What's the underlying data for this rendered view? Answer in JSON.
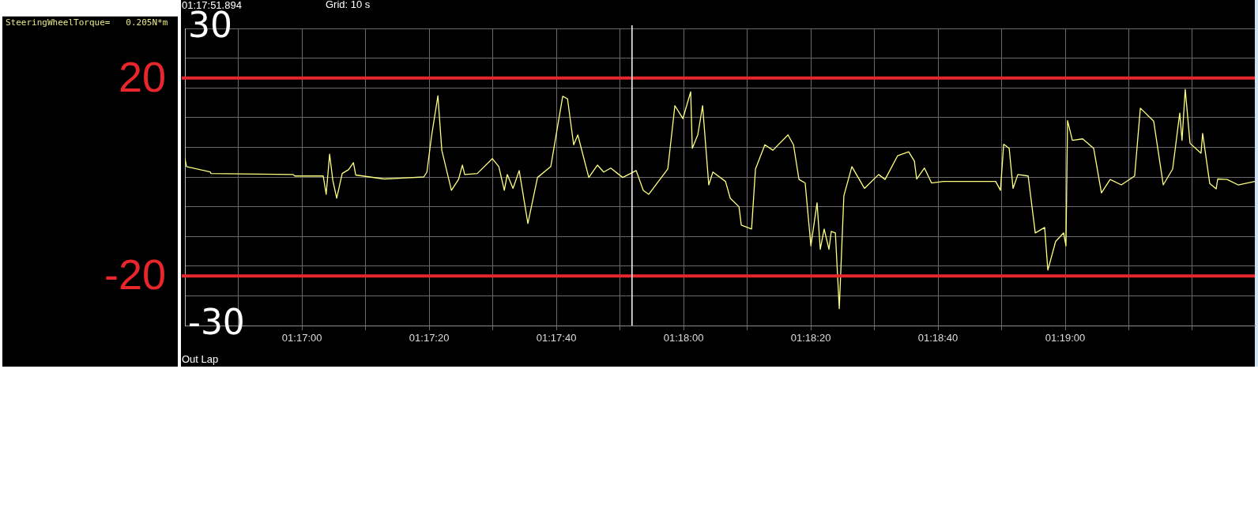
{
  "chart_data": {
    "type": "line",
    "annotations": [
      "SteeringWheelTorque=   0.205N*m",
      "Grid: 10 s",
      "Out Lap"
    ],
    "x": [
      1.27822,
      1.27829,
      1.27933,
      1.27936,
      1.28295,
      1.28302,
      1.28426,
      1.28439,
      1.28454,
      1.28468,
      1.28485,
      1.28509,
      1.28537,
      1.28558,
      1.28568,
      1.28692,
      1.28865,
      1.28879,
      1.28899,
      1.28927,
      1.28944,
      1.28986,
      1.29017,
      1.29034,
      1.29044,
      1.29099,
      1.29165,
      1.29193,
      1.29217,
      1.2923,
      1.29255,
      1.29282,
      1.2932,
      1.29362,
      1.2942,
      1.29472,
      1.29493,
      1.2952,
      1.29538,
      1.29586,
      1.29624,
      1.29651,
      1.29682,
      1.29734,
      1.29793,
      1.29824,
      1.29848,
      1.29931,
      1.29962,
      1.29997,
      1.30031,
      1.30038,
      1.30062,
      1.30083,
      1.3011,
      1.30128,
      1.30183,
      1.30204,
      1.30242,
      1.30252,
      1.30297,
      1.30314,
      1.30355,
      1.3039,
      1.30456,
      1.3048,
      1.30504,
      1.30531,
      1.30556,
      1.30583,
      1.30597,
      1.30614,
      1.30635,
      1.30645,
      1.30663,
      1.3068,
      1.307,
      1.30735,
      1.3079,
      1.30852,
      1.3088,
      1.30935,
      1.30983,
      1.31008,
      1.31018,
      1.31052,
      1.31083,
      1.31135,
      1.31363,
      1.31384,
      1.31398,
      1.31422,
      1.31439,
      1.3146,
      1.31505,
      1.31536,
      1.31577,
      1.31591,
      1.31625,
      1.3166,
      1.3167,
      1.31677,
      1.31698,
      1.31743,
      1.31791,
      1.31825,
      1.31863,
      1.31912,
      1.3197,
      1.31995,
      1.32053,
      1.32095,
      1.32136,
      1.32167,
      1.32177,
      1.32191,
      1.32212,
      1.3226,
      1.32267,
      1.32298,
      1.32326,
      1.32333,
      1.32374,
      1.32422,
      1.32495
    ],
    "series": [
      {
        "color": "#ffff80",
        "values": [
          3.8,
          2.1,
          1.0,
          0.7,
          0.5,
          0.2,
          0.2,
          -3.5,
          4.6,
          -0.7,
          -4.3,
          0.7,
          1.5,
          2.9,
          0.4,
          -0.4,
          0.0,
          1.0,
          8.2,
          16.4,
          5.4,
          -2.7,
          -0.5,
          2.4,
          0.5,
          0.7,
          3.7,
          2.1,
          -2.7,
          0.5,
          -2.3,
          1.3,
          -9.4,
          -0.1,
          2.1,
          16.3,
          15.8,
          6.5,
          8.5,
          -0.1,
          2.4,
          1.0,
          1.8,
          -0.1,
          1.3,
          -2.7,
          -3.5,
          1.6,
          14.4,
          11.8,
          17.2,
          5.8,
          8.5,
          14.4,
          -1.6,
          1.0,
          -0.9,
          -4.3,
          -6.0,
          -9.7,
          -10.5,
          1.6,
          6.5,
          5.4,
          8.5,
          6.5,
          -0.5,
          -1.2,
          -13.9,
          -5.2,
          -14.6,
          -10.5,
          -14.6,
          -11.0,
          -11.3,
          -26.6,
          -3.8,
          2.1,
          -2.3,
          0.5,
          -0.5,
          4.3,
          5.1,
          3.2,
          -0.4,
          1.8,
          -1.2,
          -0.9,
          -0.9,
          -2.7,
          6.6,
          5.8,
          -2.3,
          0.5,
          0.2,
          -11.3,
          -10.2,
          -18.8,
          -13.0,
          -11.3,
          -13.9,
          11.4,
          7.4,
          7.7,
          5.8,
          -3.2,
          -0.5,
          -1.6,
          0.2,
          13.9,
          11.3,
          -1.6,
          1.6,
          12.9,
          7.4,
          17.7,
          6.8,
          4.8,
          8.8,
          -1.3,
          -2.4,
          -0.4,
          -0.5,
          -1.6,
          -0.9
        ]
      }
    ],
    "xlim": [
      1.27822,
      1.32495
    ],
    "xticks": [
      {
        "value": 1.280556,
        "label": null
      },
      {
        "value": 1.283333,
        "label": "01:17:00"
      },
      {
        "value": 1.286111,
        "label": null
      },
      {
        "value": 1.288889,
        "label": "01:17:20"
      },
      {
        "value": 1.291667,
        "label": null
      },
      {
        "value": 1.294444,
        "label": "01:17:40"
      },
      {
        "value": 1.297222,
        "label": null
      },
      {
        "value": 1.3,
        "label": "01:18:00"
      },
      {
        "value": 1.302778,
        "label": null
      },
      {
        "value": 1.305556,
        "label": "01:18:20"
      },
      {
        "value": 1.308333,
        "label": null
      },
      {
        "value": 1.311111,
        "label": "01:18:40"
      },
      {
        "value": 1.313889,
        "label": null
      },
      {
        "value": 1.316667,
        "label": "01:19:00"
      },
      {
        "value": 1.319444,
        "label": null
      },
      {
        "value": 1.322222,
        "label": null
      }
    ],
    "ylim": [
      -30,
      30
    ],
    "yticks": [
      -30,
      {
        "value": -24,
        "label": null
      },
      {
        "value": -18,
        "label": null
      },
      {
        "value": -12,
        "label": null
      },
      {
        "value": -6,
        "label": null
      },
      {
        "value": 0,
        "label": null
      },
      {
        "value": 6,
        "label": null
      },
      {
        "value": 12,
        "label": null
      },
      {
        "value": 18,
        "label": null
      },
      {
        "value": 24,
        "label": null
      },
      30
    ],
    "grid": true,
    "ref_lines": [
      {
        "axis": "y",
        "value": 20,
        "label": "20",
        "color": "#e8262b"
      },
      {
        "axis": "y",
        "value": -20,
        "label": "-20",
        "color": "#e8262b"
      },
      {
        "axis": "x",
        "value": 1.297748,
        "label": "01:17:51.894",
        "color": "#ffffff"
      }
    ]
  }
}
